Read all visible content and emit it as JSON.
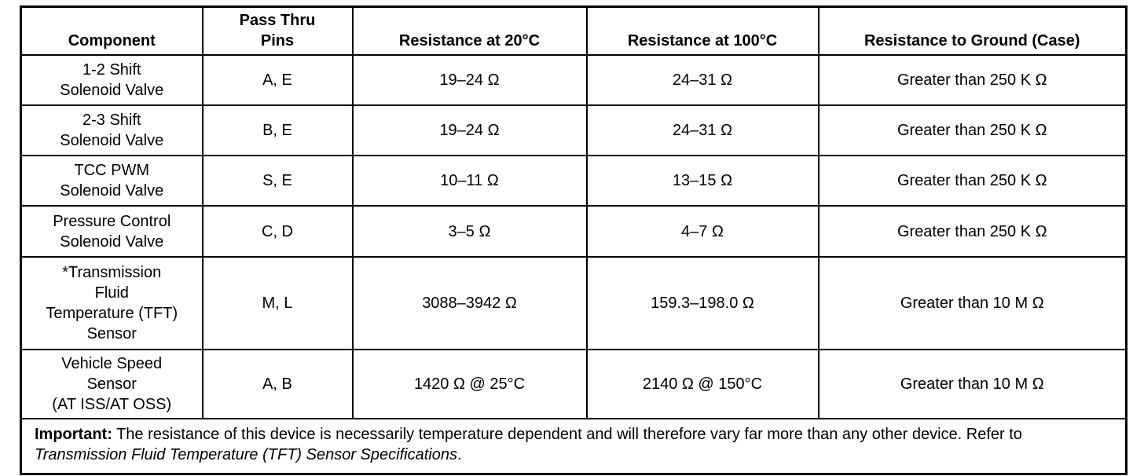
{
  "table": {
    "header": [
      [
        "Component"
      ],
      [
        "Pass Thru",
        "Pins"
      ],
      [
        "Resistance at 20°C"
      ],
      [
        "Resistance at 100°C"
      ],
      [
        "Resistance to Ground (Case)"
      ]
    ],
    "rows": [
      [
        [
          "1-2 Shift",
          "Solenoid Valve"
        ],
        [
          "A, E"
        ],
        [
          "19–24 Ω"
        ],
        [
          "24–31 Ω"
        ],
        [
          "Greater than 250 K Ω"
        ]
      ],
      [
        [
          "2-3 Shift",
          "Solenoid Valve"
        ],
        [
          "B, E"
        ],
        [
          "19–24 Ω"
        ],
        [
          "24–31 Ω"
        ],
        [
          "Greater than 250 K Ω"
        ]
      ],
      [
        [
          "TCC PWM",
          "Solenoid Valve"
        ],
        [
          "S, E"
        ],
        [
          "10–11 Ω"
        ],
        [
          "13–15 Ω"
        ],
        [
          "Greater than 250 K Ω"
        ]
      ],
      [
        [
          "Pressure Control",
          "Solenoid Valve"
        ],
        [
          "C, D"
        ],
        [
          "3–5 Ω"
        ],
        [
          "4–7 Ω"
        ],
        [
          "Greater than 250 K Ω"
        ]
      ],
      [
        [
          "*Transmission",
          "Fluid",
          "Temperature (TFT)",
          "Sensor"
        ],
        [
          "M, L"
        ],
        [
          "3088–3942 Ω"
        ],
        [
          "159.3–198.0 Ω"
        ],
        [
          "Greater than 10 M Ω"
        ]
      ],
      [
        [
          "Vehicle Speed",
          "Sensor",
          "(AT ISS/AT OSS)"
        ],
        [
          "A, B"
        ],
        [
          "1420 Ω @ 25°C"
        ],
        [
          "2140 Ω @ 150°C"
        ],
        [
          "Greater than 10 M Ω"
        ]
      ]
    ],
    "note": {
      "label": "Important:",
      "text": "The resistance of this device is necessarily temperature dependent and will therefore vary far more than any other device. Refer to",
      "ref": "Transmission Fluid Temperature (TFT) Sensor Specifications",
      "end": "."
    }
  }
}
